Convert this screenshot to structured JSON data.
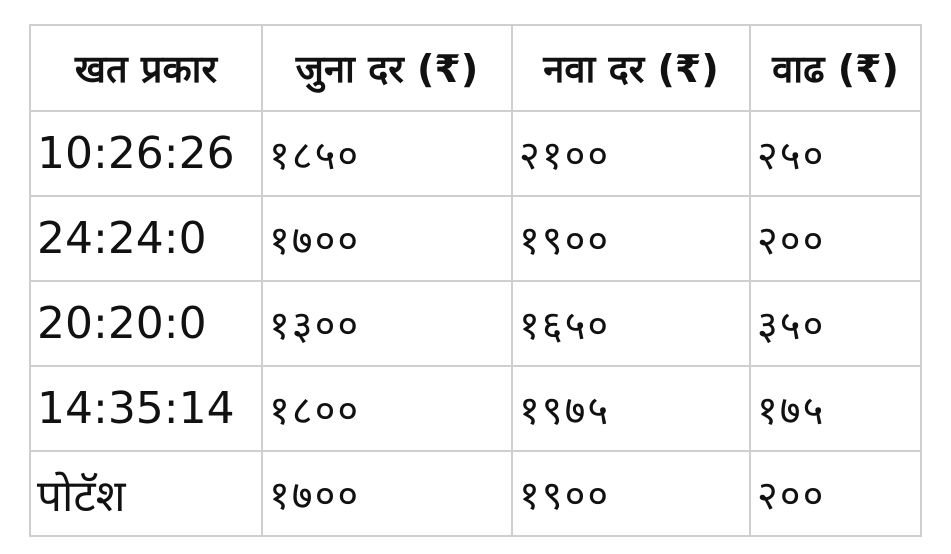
{
  "table": {
    "headers": [
      "खत प्रकार",
      "जुना दर (₹)",
      "नवा दर (₹)",
      "वाढ (₹)"
    ],
    "rows": [
      [
        "10:26:26",
        "१८५०",
        "२१००",
        "२५०"
      ],
      [
        "24:24:0",
        "१७००",
        "१९००",
        "२००"
      ],
      [
        "20:20:0",
        "१३००",
        "१६५०",
        "३५०"
      ],
      [
        "14:35:14",
        "१८००",
        "१९७५",
        "१७५"
      ],
      [
        "पोटॅश",
        "१७००",
        "१९००",
        "२००"
      ]
    ]
  }
}
